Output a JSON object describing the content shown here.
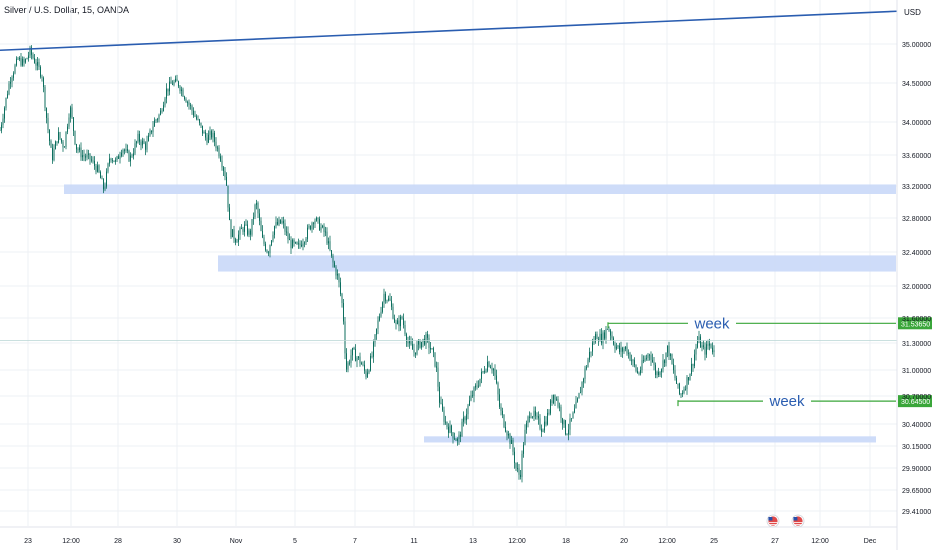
{
  "header": {
    "symbol_title": "Silver / U.S. Dollar, 15, OANDA",
    "currency": "USD"
  },
  "colors": {
    "candle": "#0c6e5e",
    "trendline": "#2a5db0",
    "zone": "#c9d8f8",
    "level_line": "#3aa63a",
    "tag_bg": "#3aa63a",
    "grid": "#eef0f4",
    "flag": "#e04848"
  },
  "chart_data": {
    "type": "candlestick",
    "ylim": [
      29.41,
      35.3
    ],
    "y_ticks": [
      35.0,
      34.5,
      34.0,
      33.6,
      33.2,
      32.8,
      32.4,
      32.0,
      31.6,
      31.3,
      31.0,
      30.7,
      30.4,
      30.15,
      29.9,
      29.65,
      29.41
    ],
    "y_tick_labels": [
      "35.00000",
      "34.50000",
      "34.00000",
      "33.60000",
      "33.20000",
      "32.80000",
      "32.40000",
      "32.00000",
      "31.60000",
      "31.30000",
      "31.00000",
      "30.70000",
      "30.40000",
      "30.15000",
      "29.90000",
      "29.65000",
      "29.41000"
    ],
    "x_ticks": [
      "23",
      "12:00",
      "28",
      "30",
      "Nov",
      "5",
      "7",
      "11",
      "13",
      "12:00",
      "18",
      "20",
      "12:00",
      "25",
      "27",
      "12:00",
      "Dec"
    ],
    "price_path": [
      [
        0,
        33.9
      ],
      [
        10,
        34.55
      ],
      [
        18,
        34.8
      ],
      [
        24,
        34.75
      ],
      [
        30,
        34.9
      ],
      [
        36,
        34.75
      ],
      [
        42,
        34.6
      ],
      [
        47,
        34.0
      ],
      [
        52,
        33.55
      ],
      [
        58,
        33.85
      ],
      [
        64,
        33.7
      ],
      [
        70,
        34.2
      ],
      [
        76,
        33.7
      ],
      [
        82,
        33.6
      ],
      [
        90,
        33.55
      ],
      [
        98,
        33.4
      ],
      [
        104,
        33.15
      ],
      [
        110,
        33.6
      ],
      [
        116,
        33.5
      ],
      [
        122,
        33.7
      ],
      [
        130,
        33.55
      ],
      [
        138,
        33.8
      ],
      [
        146,
        33.7
      ],
      [
        154,
        34.0
      ],
      [
        160,
        34.1
      ],
      [
        166,
        34.4
      ],
      [
        172,
        34.5
      ],
      [
        178,
        34.5
      ],
      [
        186,
        34.3
      ],
      [
        194,
        34.1
      ],
      [
        200,
        33.95
      ],
      [
        206,
        33.8
      ],
      [
        212,
        33.85
      ],
      [
        220,
        33.6
      ],
      [
        226,
        33.3
      ],
      [
        230,
        32.65
      ],
      [
        236,
        32.55
      ],
      [
        244,
        32.7
      ],
      [
        250,
        32.6
      ],
      [
        256,
        33.0
      ],
      [
        262,
        32.55
      ],
      [
        268,
        32.4
      ],
      [
        274,
        32.7
      ],
      [
        282,
        32.75
      ],
      [
        290,
        32.5
      ],
      [
        298,
        32.45
      ],
      [
        306,
        32.6
      ],
      [
        314,
        32.8
      ],
      [
        320,
        32.7
      ],
      [
        326,
        32.6
      ],
      [
        332,
        32.3
      ],
      [
        338,
        32.1
      ],
      [
        343,
        31.7
      ],
      [
        346,
        31.0
      ],
      [
        352,
        31.2
      ],
      [
        360,
        31.1
      ],
      [
        366,
        30.95
      ],
      [
        372,
        31.15
      ],
      [
        378,
        31.55
      ],
      [
        384,
        31.9
      ],
      [
        390,
        31.8
      ],
      [
        396,
        31.5
      ],
      [
        402,
        31.6
      ],
      [
        408,
        31.3
      ],
      [
        414,
        31.2
      ],
      [
        420,
        31.3
      ],
      [
        426,
        31.35
      ],
      [
        432,
        31.2
      ],
      [
        436,
        31.05
      ],
      [
        440,
        30.6
      ],
      [
        446,
        30.4
      ],
      [
        452,
        30.3
      ],
      [
        458,
        30.2
      ],
      [
        464,
        30.45
      ],
      [
        470,
        30.65
      ],
      [
        476,
        30.8
      ],
      [
        482,
        30.95
      ],
      [
        488,
        31.1
      ],
      [
        494,
        31.0
      ],
      [
        500,
        30.55
      ],
      [
        506,
        30.35
      ],
      [
        512,
        30.15
      ],
      [
        516,
        29.9
      ],
      [
        520,
        29.8
      ],
      [
        524,
        30.25
      ],
      [
        530,
        30.55
      ],
      [
        536,
        30.45
      ],
      [
        542,
        30.35
      ],
      [
        548,
        30.5
      ],
      [
        554,
        30.75
      ],
      [
        560,
        30.55
      ],
      [
        566,
        30.3
      ],
      [
        572,
        30.45
      ],
      [
        578,
        30.65
      ],
      [
        584,
        30.95
      ],
      [
        590,
        31.2
      ],
      [
        596,
        31.4
      ],
      [
        602,
        31.35
      ],
      [
        608,
        31.5
      ],
      [
        614,
        31.3
      ],
      [
        620,
        31.2
      ],
      [
        626,
        31.25
      ],
      [
        632,
        31.1
      ],
      [
        638,
        30.95
      ],
      [
        644,
        31.1
      ],
      [
        650,
        31.2
      ],
      [
        656,
        30.95
      ],
      [
        662,
        31.05
      ],
      [
        668,
        31.25
      ],
      [
        674,
        30.95
      ],
      [
        680,
        30.7
      ],
      [
        686,
        30.85
      ],
      [
        692,
        31.05
      ],
      [
        698,
        31.35
      ],
      [
        704,
        31.2
      ],
      [
        710,
        31.3
      ],
      [
        714,
        31.2
      ]
    ],
    "trendline": [
      [
        0,
        34.92
      ],
      [
        897,
        35.42
      ]
    ],
    "zones": [
      {
        "x0": 64,
        "x1": 896,
        "y_low": 33.1,
        "y_high": 33.22
      },
      {
        "x0": 218,
        "x1": 896,
        "y_low": 32.17,
        "y_high": 32.36
      },
      {
        "x0": 424,
        "x1": 876,
        "y_low": 30.19,
        "y_high": 30.26
      }
    ],
    "levels": [
      {
        "value": 31.5365,
        "x0": 608,
        "x1": 896,
        "label": "week",
        "tag": "31.53650"
      },
      {
        "value": 30.645,
        "x0": 678,
        "x1": 896,
        "label": "week",
        "tag": "30.64500"
      }
    ],
    "crosshair_value": 31.33
  }
}
